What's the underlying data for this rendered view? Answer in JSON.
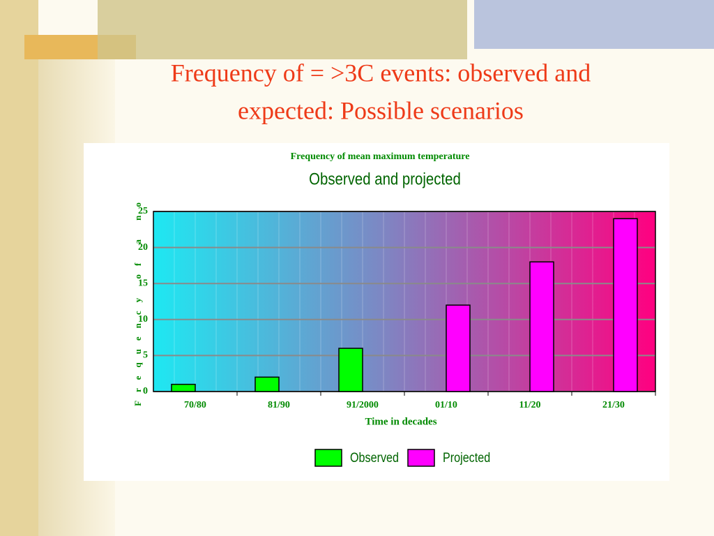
{
  "slide_title_lines": [
    "Frequency of = >3C events: observed and",
    "expected: Possible scenarios"
  ],
  "chart_data": {
    "type": "bar",
    "title": "Frequency of mean maximum temperature",
    "subtitle": "Observed and projected",
    "y_label": "Frequency of a no",
    "x_label": "Time in decades",
    "categories": [
      "70/80",
      "81/90",
      "91/2000",
      "01/10",
      "11/20",
      "21/30"
    ],
    "series": [
      {
        "name": "Observed",
        "color": "#00ff00",
        "values": [
          1,
          2,
          6,
          null,
          null,
          null
        ]
      },
      {
        "name": "Projected",
        "color": "#ff00ff",
        "values": [
          null,
          null,
          null,
          12,
          18,
          24
        ]
      }
    ],
    "ylim": [
      0,
      25
    ],
    "yticks": [
      0,
      5,
      10,
      15,
      20,
      25
    ],
    "grid": true,
    "legend": "bottom"
  }
}
